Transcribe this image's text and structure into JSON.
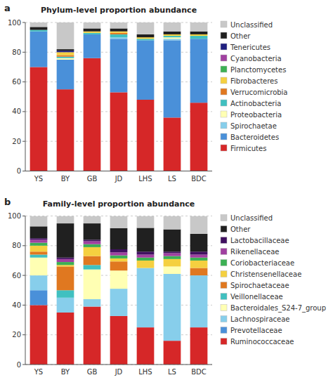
{
  "chart_data": [
    {
      "type": "bar",
      "stacked": true,
      "title": "Phylum-level proportion abundance",
      "annotations": [
        "a"
      ],
      "categories": [
        "YS",
        "BY",
        "GB",
        "JD",
        "LHS",
        "LS",
        "BDC"
      ],
      "series": [
        {
          "name": "Firmicutes",
          "color": "#d62728",
          "values": [
            70,
            55,
            76,
            53,
            48,
            36,
            46
          ]
        },
        {
          "name": "Bacteroidetes",
          "color": "#4a90d9",
          "values": [
            24,
            20,
            16,
            36,
            40,
            52,
            43
          ]
        },
        {
          "name": "Spirochaetae",
          "color": "#87ceeb",
          "values": [
            0,
            0,
            0,
            1,
            0,
            1,
            0
          ]
        },
        {
          "name": "Proteobacteria",
          "color": "#ffffb3",
          "values": [
            0,
            1,
            0,
            0,
            0,
            1,
            0
          ]
        },
        {
          "name": "Actinobacteria",
          "color": "#40c0c0",
          "values": [
            1,
            1,
            1,
            2,
            1,
            1,
            2
          ]
        },
        {
          "name": "Verrucomicrobia",
          "color": "#e07820",
          "values": [
            0,
            1,
            0,
            1,
            0,
            0,
            0
          ]
        },
        {
          "name": "Fibrobacteres",
          "color": "#f5d040",
          "values": [
            0,
            2,
            1,
            1,
            1,
            1,
            1
          ]
        },
        {
          "name": "Planctomycetes",
          "color": "#3cb054",
          "values": [
            0,
            0,
            0,
            0,
            0,
            0,
            0
          ]
        },
        {
          "name": "Cyanobacteria",
          "color": "#a040a0",
          "values": [
            0,
            0,
            0,
            0,
            0,
            0,
            0
          ]
        },
        {
          "name": "Tenericutes",
          "color": "#202080",
          "values": [
            0,
            1,
            0,
            0,
            0,
            0,
            0
          ]
        },
        {
          "name": "Other",
          "color": "#202020",
          "values": [
            2,
            1,
            2,
            2,
            2,
            2,
            2
          ]
        },
        {
          "name": "Unclassified",
          "color": "#c8c8c8",
          "values": [
            3,
            18,
            4,
            4,
            8,
            6,
            6
          ]
        }
      ],
      "ylim": [
        0,
        100
      ],
      "yticks": [
        0,
        20,
        40,
        60,
        80,
        100
      ],
      "grid": true,
      "legend": "right"
    },
    {
      "type": "bar",
      "stacked": true,
      "title": "Family-level proportion abundance",
      "annotations": [
        "b"
      ],
      "categories": [
        "YS",
        "BY",
        "GB",
        "JD",
        "LHS",
        "LS",
        "BDC"
      ],
      "series": [
        {
          "name": "Ruminococcaceae",
          "color": "#d62728",
          "values": [
            40,
            35,
            39,
            32.653,
            25,
            16,
            25
          ]
        },
        {
          "name": "Prevotellaceae",
          "color": "#4a90d9",
          "values": [
            10,
            0,
            0,
            0,
            0,
            0,
            0
          ]
        },
        {
          "name": "Lachnospiraceae",
          "color": "#87ceeb",
          "values": [
            10,
            10,
            5,
            18.367,
            40,
            45,
            35
          ]
        },
        {
          "name": "Bacteroidales_S24-7_group",
          "color": "#ffffb3",
          "values": [
            12,
            0,
            20,
            12.245,
            0,
            5,
            0
          ]
        },
        {
          "name": "Veillonellaceae",
          "color": "#40c0c0",
          "values": [
            2,
            5,
            3,
            0,
            0,
            0,
            0
          ]
        },
        {
          "name": "Spirochaetaceae",
          "color": "#e07820",
          "values": [
            2,
            16,
            6,
            6.122,
            0,
            0,
            5
          ]
        },
        {
          "name": "Christensenellaceae",
          "color": "#f5d040",
          "values": [
            4,
            1,
            6,
            2.041,
            5,
            5,
            5
          ]
        },
        {
          "name": "Coriobacteriaceae",
          "color": "#3cb054",
          "values": [
            2,
            2,
            2,
            2.041,
            2,
            2,
            2
          ]
        },
        {
          "name": "Rikenellaceae",
          "color": "#a040a0",
          "values": [
            2,
            2,
            2,
            2.041,
            2,
            2,
            2
          ]
        },
        {
          "name": "Lactobacillaceae",
          "color": "#401060",
          "values": [
            1,
            1,
            1,
            2.041,
            2,
            1,
            2
          ]
        },
        {
          "name": "Other",
          "color": "#202020",
          "values": [
            8,
            23,
            11,
            14.286,
            16,
            15,
            12
          ]
        },
        {
          "name": "Unclassified",
          "color": "#c8c8c8",
          "values": [
            7,
            5,
            5,
            8.163,
            8,
            9,
            12
          ]
        }
      ],
      "ylim": [
        0,
        100
      ],
      "yticks": [
        0,
        20,
        40,
        60,
        80,
        100
      ],
      "grid": true,
      "legend": "right"
    }
  ]
}
